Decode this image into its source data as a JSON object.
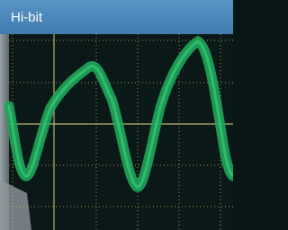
{
  "screen": {
    "label": "Hi-bit"
  }
}
